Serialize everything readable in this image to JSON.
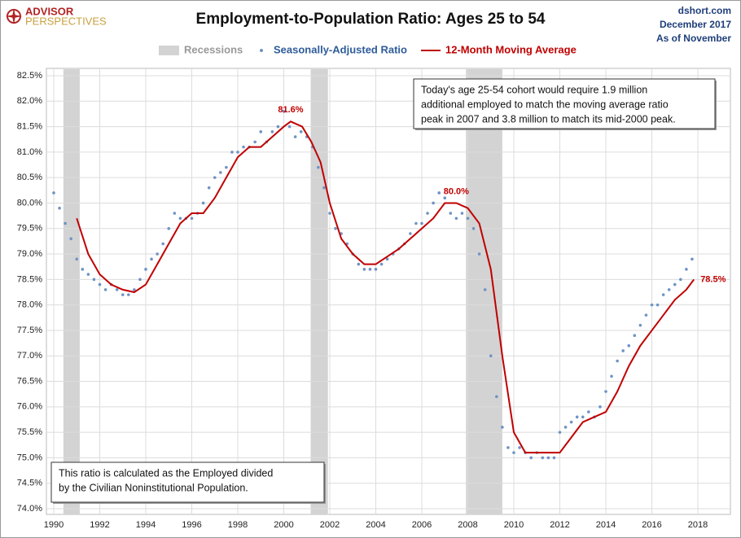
{
  "chart_data": {
    "type": "scatter-line",
    "logo": [
      "ADVISOR",
      "PERSPECTIVES"
    ],
    "title": "Employment-to-Population Ratio: Ages 25 to 54",
    "source": [
      "dshort.com",
      "December 2017",
      "As of November"
    ],
    "recessions": {
      "name": "Recessions",
      "color": "#d3d3d3",
      "periods": [
        [
          1990.42,
          1991.13
        ],
        [
          2001.17,
          2001.92
        ],
        [
          2007.92,
          2009.5
        ]
      ]
    },
    "series": [
      {
        "name": "Seasonally-Adjusted Ratio",
        "color": "#6f93c4",
        "kind": "scatter",
        "x": [
          1990.0,
          1990.25,
          1990.5,
          1990.75,
          1991.0,
          1991.25,
          1991.5,
          1991.75,
          1992.0,
          1992.25,
          1992.5,
          1992.75,
          1993.0,
          1993.25,
          1993.5,
          1993.75,
          1994.0,
          1994.25,
          1994.5,
          1994.75,
          1995.0,
          1995.25,
          1995.5,
          1995.75,
          1996.0,
          1996.25,
          1996.5,
          1996.75,
          1997.0,
          1997.25,
          1997.5,
          1997.75,
          1998.0,
          1998.25,
          1998.5,
          1998.75,
          1999.0,
          1999.25,
          1999.5,
          1999.75,
          2000.0,
          2000.25,
          2000.5,
          2000.75,
          2001.0,
          2001.25,
          2001.5,
          2001.75,
          2002.0,
          2002.25,
          2002.5,
          2002.75,
          2003.0,
          2003.25,
          2003.5,
          2003.75,
          2004.0,
          2004.25,
          2004.5,
          2004.75,
          2005.0,
          2005.25,
          2005.5,
          2005.75,
          2006.0,
          2006.25,
          2006.5,
          2006.75,
          2007.0,
          2007.25,
          2007.5,
          2007.75,
          2008.0,
          2008.25,
          2008.5,
          2008.75,
          2009.0,
          2009.25,
          2009.5,
          2009.75,
          2010.0,
          2010.25,
          2010.5,
          2010.75,
          2011.0,
          2011.25,
          2011.5,
          2011.75,
          2012.0,
          2012.25,
          2012.5,
          2012.75,
          2013.0,
          2013.25,
          2013.5,
          2013.75,
          2014.0,
          2014.25,
          2014.5,
          2014.75,
          2015.0,
          2015.25,
          2015.5,
          2015.75,
          2016.0,
          2016.25,
          2016.5,
          2016.75,
          2017.0,
          2017.25,
          2017.5,
          2017.75
        ],
        "values": [
          80.2,
          79.9,
          79.6,
          79.3,
          78.9,
          78.7,
          78.6,
          78.5,
          78.4,
          78.3,
          78.4,
          78.3,
          78.2,
          78.2,
          78.3,
          78.5,
          78.7,
          78.9,
          79.0,
          79.2,
          79.5,
          79.8,
          79.7,
          79.7,
          79.7,
          79.8,
          80.0,
          80.3,
          80.5,
          80.6,
          80.7,
          81.0,
          81.0,
          81.1,
          81.1,
          81.2,
          81.4,
          81.2,
          81.4,
          81.5,
          81.8,
          81.5,
          81.3,
          81.4,
          81.3,
          81.1,
          80.7,
          80.3,
          79.8,
          79.5,
          79.4,
          79.2,
          79.0,
          78.8,
          78.7,
          78.7,
          78.7,
          78.8,
          78.9,
          79.0,
          79.1,
          79.2,
          79.4,
          79.6,
          79.6,
          79.8,
          80.0,
          80.2,
          80.1,
          79.8,
          79.7,
          79.8,
          79.7,
          79.5,
          79.0,
          78.3,
          77.0,
          76.2,
          75.6,
          75.2,
          75.1,
          75.2,
          75.1,
          75.0,
          75.1,
          75.0,
          75.0,
          75.0,
          75.5,
          75.6,
          75.7,
          75.8,
          75.8,
          75.9,
          75.8,
          76.0,
          76.3,
          76.6,
          76.9,
          77.1,
          77.2,
          77.4,
          77.6,
          77.8,
          78.0,
          78.0,
          78.2,
          78.3,
          78.4,
          78.5,
          78.7,
          78.9
        ]
      },
      {
        "name": "12-Month Moving Average",
        "color": "#c00000",
        "kind": "line",
        "x": [
          1991.0,
          1991.5,
          1992.0,
          1992.5,
          1993.0,
          1993.5,
          1994.0,
          1994.5,
          1995.0,
          1995.5,
          1996.0,
          1996.5,
          1997.0,
          1997.5,
          1998.0,
          1998.5,
          1999.0,
          1999.5,
          2000.0,
          2000.3,
          2000.8,
          2001.2,
          2001.6,
          2002.0,
          2002.5,
          2003.0,
          2003.5,
          2004.0,
          2004.5,
          2005.0,
          2005.5,
          2006.0,
          2006.5,
          2007.0,
          2007.5,
          2008.0,
          2008.5,
          2009.0,
          2009.5,
          2010.0,
          2010.5,
          2011.0,
          2011.5,
          2012.0,
          2012.5,
          2013.0,
          2013.5,
          2014.0,
          2014.5,
          2015.0,
          2015.5,
          2016.0,
          2016.5,
          2017.0,
          2017.5,
          2017.83
        ],
        "values": [
          79.7,
          79.0,
          78.6,
          78.4,
          78.3,
          78.25,
          78.4,
          78.8,
          79.2,
          79.6,
          79.8,
          79.8,
          80.1,
          80.5,
          80.9,
          81.1,
          81.1,
          81.3,
          81.5,
          81.6,
          81.5,
          81.2,
          80.8,
          80.0,
          79.3,
          79.0,
          78.8,
          78.8,
          78.95,
          79.1,
          79.3,
          79.5,
          79.7,
          80.0,
          80.0,
          79.9,
          79.6,
          78.7,
          77.0,
          75.5,
          75.1,
          75.1,
          75.1,
          75.1,
          75.4,
          75.7,
          75.8,
          75.9,
          76.3,
          76.8,
          77.2,
          77.5,
          77.8,
          78.1,
          78.3,
          78.5
        ]
      }
    ],
    "annotations": [
      {
        "text": "81.6%",
        "x": 2000.3,
        "y": 81.6
      },
      {
        "text": "80.0%",
        "x": 2007.5,
        "y": 80.0
      },
      {
        "text": "78.5%",
        "x": 2017.83,
        "y": 78.5
      }
    ],
    "notes": [
      {
        "lines": [
          "Today's age 25-54  cohort would require 1.9 million",
          "additional employed to match the moving average ratio",
          "peak in 2007  and 3.8 million to match its mid-2000 peak."
        ]
      },
      {
        "lines": [
          "This ratio is calculated as the Employed divided",
          "by the Civilian Noninstitutional Population."
        ]
      }
    ],
    "xlim": [
      1990,
      2018
    ],
    "xticks": [
      1990,
      1992,
      1994,
      1996,
      1998,
      2000,
      2002,
      2004,
      2006,
      2008,
      2010,
      2012,
      2014,
      2016,
      2018
    ],
    "ylim": [
      74.0,
      82.5
    ],
    "yticks": [
      {
        "value": 74.0,
        "label": "74.0%"
      },
      {
        "value": 74.5,
        "label": "74.5%"
      },
      {
        "value": 75.0,
        "label": "75.0%"
      },
      {
        "value": 75.5,
        "label": "75.5%"
      },
      {
        "value": 76.0,
        "label": "76.0%"
      },
      {
        "value": 76.5,
        "label": "76.5%"
      },
      {
        "value": 77.0,
        "label": "77.0%"
      },
      {
        "value": 77.5,
        "label": "77.5%"
      },
      {
        "value": 78.0,
        "label": "78.0%"
      },
      {
        "value": 78.5,
        "label": "78.5%"
      },
      {
        "value": 79.0,
        "label": "79.0%"
      },
      {
        "value": 79.5,
        "label": "79.5%"
      },
      {
        "value": 80.0,
        "label": "80.0%"
      },
      {
        "value": 80.5,
        "label": "80.5%"
      },
      {
        "value": 81.0,
        "label": "81.0%"
      },
      {
        "value": 81.5,
        "label": "81.5%"
      },
      {
        "value": 82.0,
        "label": "82.0%"
      },
      {
        "value": 82.5,
        "label": "82.5%"
      }
    ],
    "grid": true
  }
}
